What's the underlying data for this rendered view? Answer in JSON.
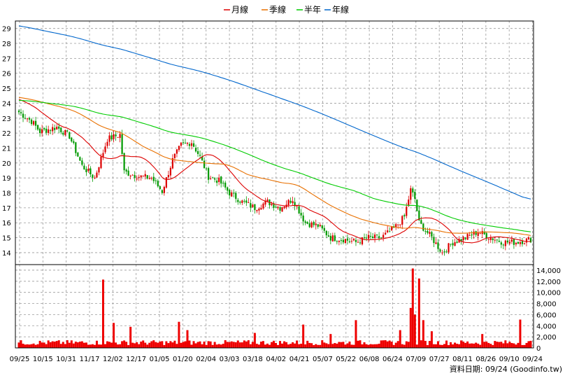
{
  "chart_data": {
    "type": "candlestick",
    "legend": [
      {
        "label": "月線",
        "color": "#dd0000"
      },
      {
        "label": "季線",
        "color": "#e87000"
      },
      {
        "label": "半年",
        "color": "#00cc00"
      },
      {
        "label": "年線",
        "color": "#0066cc"
      }
    ],
    "price_axis": {
      "range": [
        13.2,
        29.5
      ],
      "ticks": [
        "29",
        "28",
        "27",
        "26",
        "25",
        "24",
        "23",
        "22",
        "21",
        "20",
        "19",
        "18",
        "17",
        "16",
        "15",
        "14"
      ]
    },
    "volume_axis": {
      "range": [
        0,
        15000
      ],
      "ticks": [
        "14,000",
        "12,000",
        "10,000",
        "8,000",
        "6,000",
        "4,000",
        "2,000",
        "0"
      ]
    },
    "x_ticks": [
      "09/25",
      "10/15",
      "10/31",
      "11/17",
      "12/02",
      "12/17",
      "01/05",
      "01/20",
      "02/04",
      "03/03",
      "03/18",
      "04/02",
      "04/21",
      "05/07",
      "05/22",
      "06/08",
      "06/24",
      "07/09",
      "07/27",
      "08/11",
      "08/26",
      "09/10",
      "09/24"
    ],
    "price_anchors": [
      {
        "i": 0,
        "p": 23.4
      },
      {
        "i": 6,
        "p": 22.8
      },
      {
        "i": 10,
        "p": 22.1
      },
      {
        "i": 18,
        "p": 22.4
      },
      {
        "i": 24,
        "p": 21.8
      },
      {
        "i": 30,
        "p": 19.8
      },
      {
        "i": 36,
        "p": 19.0
      },
      {
        "i": 42,
        "p": 21.6
      },
      {
        "i": 48,
        "p": 21.9
      },
      {
        "i": 50,
        "p": 19.4
      },
      {
        "i": 57,
        "p": 19.1
      },
      {
        "i": 63,
        "p": 19.0
      },
      {
        "i": 68,
        "p": 18.1
      },
      {
        "i": 73,
        "p": 20.2
      },
      {
        "i": 77,
        "p": 21.2
      },
      {
        "i": 82,
        "p": 21.4
      },
      {
        "i": 86,
        "p": 20.4
      },
      {
        "i": 90,
        "p": 19.1
      },
      {
        "i": 95,
        "p": 18.8
      },
      {
        "i": 100,
        "p": 18.0
      },
      {
        "i": 106,
        "p": 17.4
      },
      {
        "i": 112,
        "p": 17.0
      },
      {
        "i": 118,
        "p": 17.4
      },
      {
        "i": 124,
        "p": 17.0
      },
      {
        "i": 130,
        "p": 17.6
      },
      {
        "i": 136,
        "p": 16.0
      },
      {
        "i": 142,
        "p": 15.8
      },
      {
        "i": 148,
        "p": 15.0
      },
      {
        "i": 154,
        "p": 14.9
      },
      {
        "i": 160,
        "p": 14.7
      },
      {
        "i": 166,
        "p": 15.0
      },
      {
        "i": 172,
        "p": 15.0
      },
      {
        "i": 178,
        "p": 15.6
      },
      {
        "i": 183,
        "p": 16.4
      },
      {
        "i": 186,
        "p": 18.2
      },
      {
        "i": 188,
        "p": 17.6
      },
      {
        "i": 190,
        "p": 16.0
      },
      {
        "i": 196,
        "p": 15.0
      },
      {
        "i": 201,
        "p": 14.0
      },
      {
        "i": 206,
        "p": 14.7
      },
      {
        "i": 212,
        "p": 15.0
      },
      {
        "i": 218,
        "p": 15.4
      },
      {
        "i": 224,
        "p": 15.0
      },
      {
        "i": 230,
        "p": 14.7
      },
      {
        "i": 236,
        "p": 14.7
      },
      {
        "i": 243,
        "p": 14.9
      }
    ],
    "volume_spikes": [
      {
        "i": 40,
        "v": 12300
      },
      {
        "i": 45,
        "v": 4500
      },
      {
        "i": 53,
        "v": 3800
      },
      {
        "i": 76,
        "v": 4700
      },
      {
        "i": 80,
        "v": 3200
      },
      {
        "i": 112,
        "v": 2700
      },
      {
        "i": 135,
        "v": 4200
      },
      {
        "i": 148,
        "v": 2500
      },
      {
        "i": 160,
        "v": 5000
      },
      {
        "i": 181,
        "v": 3200
      },
      {
        "i": 186,
        "v": 7200
      },
      {
        "i": 187,
        "v": 14300
      },
      {
        "i": 188,
        "v": 6000
      },
      {
        "i": 190,
        "v": 12500
      },
      {
        "i": 192,
        "v": 5000
      },
      {
        "i": 196,
        "v": 3000
      },
      {
        "i": 220,
        "v": 2500
      },
      {
        "i": 238,
        "v": 5100
      }
    ]
  },
  "footer": "資料日期: 09/24  (Goodinfo.tw)"
}
